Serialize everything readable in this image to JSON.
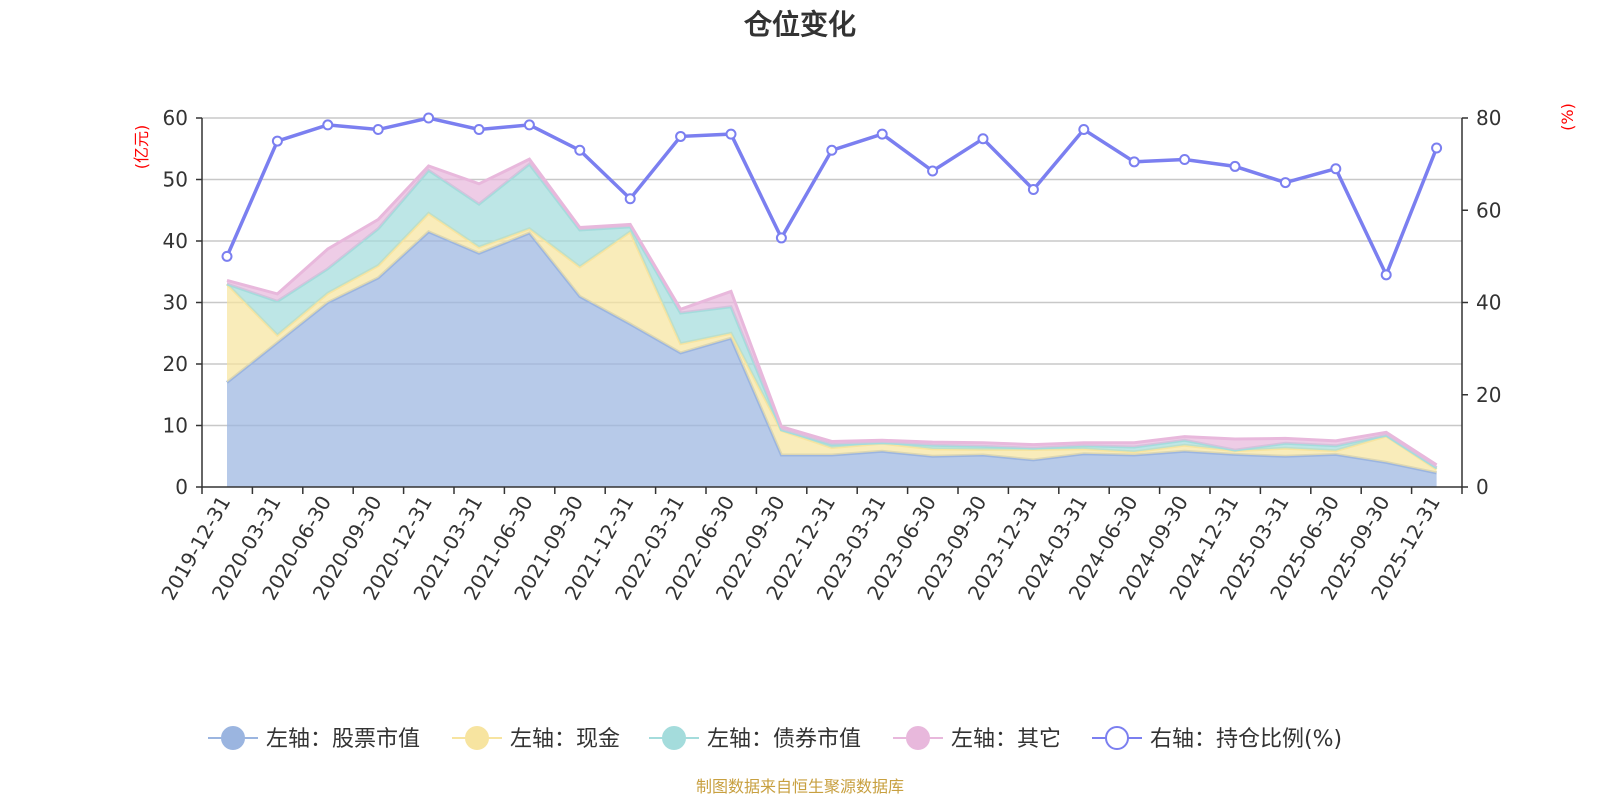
{
  "chart_data": {
    "type": "area",
    "title": "仓位变化",
    "left_axis_unit": "(亿元)",
    "right_axis_unit": "(%)",
    "left_ylim": [
      0,
      60
    ],
    "left_ticks": [
      "0",
      "10",
      "20",
      "30",
      "40",
      "50",
      "60"
    ],
    "right_ylim": [
      0,
      80
    ],
    "right_ticks": [
      "0",
      "20",
      "40",
      "60",
      "80"
    ],
    "categories": [
      "2019-12-31",
      "2020-03-31",
      "2020-06-30",
      "2020-09-30",
      "2020-12-31",
      "2021-03-31",
      "2021-06-30",
      "2021-09-30",
      "2021-12-31",
      "2022-03-31",
      "2022-06-30",
      "2022-09-30",
      "2022-12-31",
      "2023-03-31",
      "2023-06-30",
      "2023-09-30",
      "2023-12-31",
      "2024-03-31",
      "2024-06-30",
      "2024-09-30",
      "2024-12-31",
      "2025-03-31",
      "2025-06-30",
      "2025-09-30",
      "2025-12-31"
    ],
    "stacked_series": [
      {
        "name": "左轴：股票市值",
        "color": "#9bb5e0",
        "values": [
          17,
          23.5,
          30,
          34,
          41.5,
          38,
          41.3,
          31,
          26.5,
          21.8,
          24.2,
          5.2,
          5.2,
          5.8,
          5,
          5.2,
          4.4,
          5.4,
          5.2,
          5.8,
          5.3,
          5,
          5.3,
          4,
          2.3
        ]
      },
      {
        "name": "左轴：现金",
        "color": "#f7e4a0",
        "values": [
          16,
          1.2,
          1.5,
          2,
          3,
          1,
          0.7,
          4.8,
          15,
          1.5,
          0.8,
          4,
          1.2,
          1.3,
          1.2,
          0.9,
          1.7,
          0.8,
          0.5,
          1,
          0.6,
          1.3,
          0.6,
          4.3,
          0.6
        ]
      },
      {
        "name": "左轴：债券市值",
        "color": "#a4dcdc",
        "values": [
          0,
          5.5,
          4,
          6,
          7,
          7,
          10.5,
          6,
          0.8,
          5,
          4.3,
          0.1,
          0.5,
          0.1,
          0.6,
          0.5,
          0.2,
          0.5,
          0.8,
          0.8,
          0.1,
          0.8,
          0.8,
          0.1,
          0.2
        ]
      },
      {
        "name": "左轴：其它",
        "color": "#e8b8dc",
        "values": [
          0.6,
          1.2,
          3.2,
          1.5,
          0.7,
          3.3,
          0.8,
          0.4,
          0.4,
          0.6,
          2.5,
          0.5,
          0.5,
          0.4,
          0.5,
          0.6,
          0.6,
          0.5,
          0.7,
          0.6,
          1.8,
          0.8,
          0.8,
          0.5,
          0.5
        ]
      }
    ],
    "line_series": {
      "name": "右轴：持仓比例(%)",
      "color": "#7b7ff0",
      "values": [
        50,
        75,
        78.5,
        77.5,
        80,
        77.5,
        78.5,
        73,
        62.5,
        76,
        76.5,
        54,
        73,
        76.5,
        68.5,
        75.5,
        64.5,
        77.5,
        70.5,
        71,
        69.5,
        66,
        69,
        46,
        73.5
      ]
    }
  },
  "source_note": "制图数据来自恒生聚源数据库"
}
